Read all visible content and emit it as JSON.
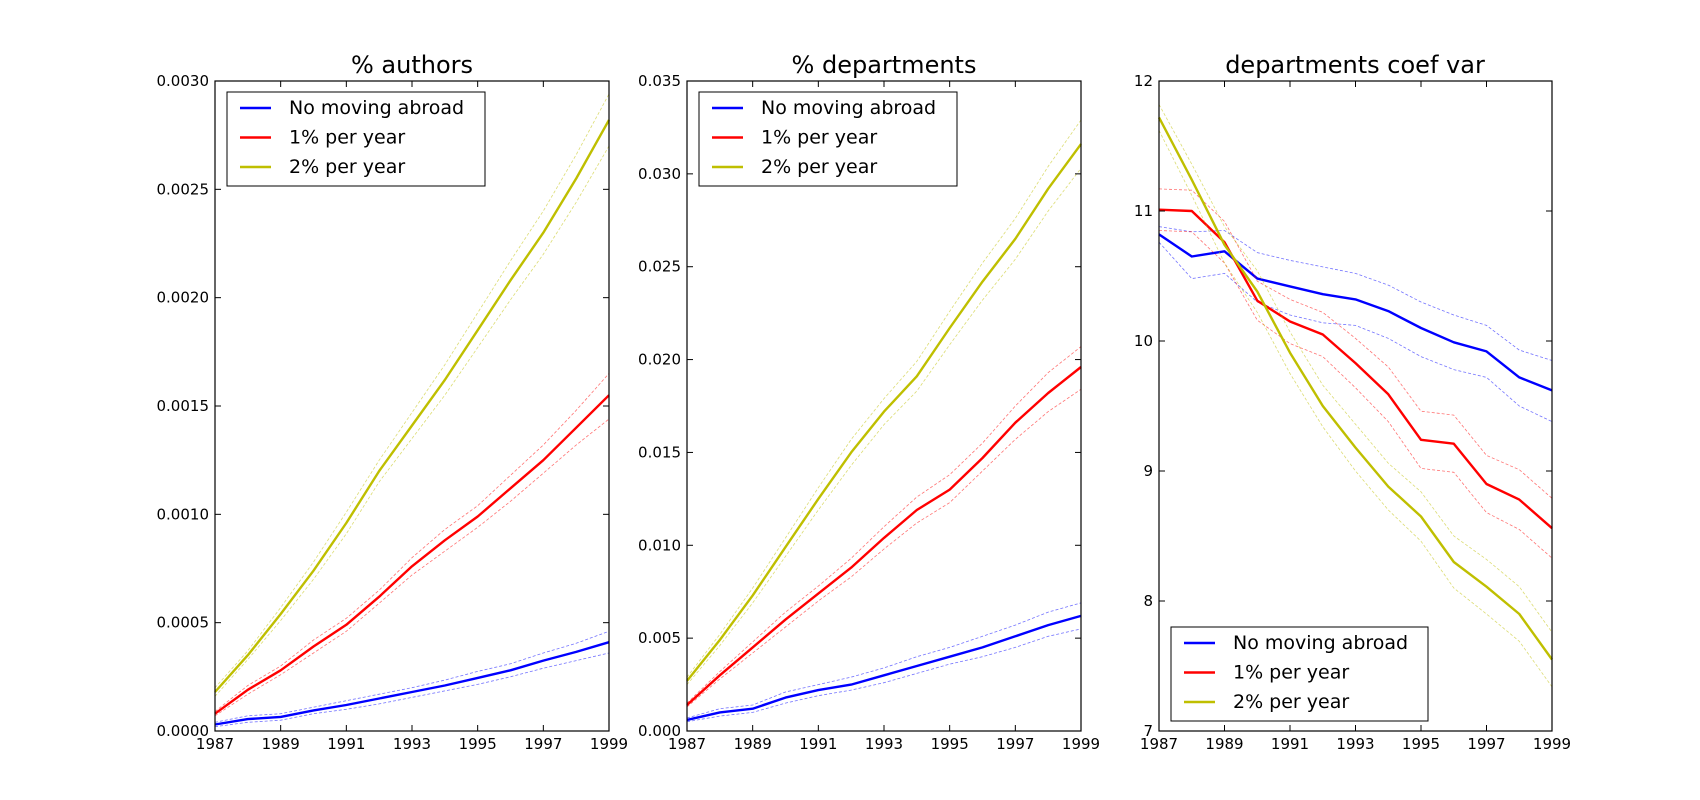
{
  "figure": {
    "background": "#ffffff"
  },
  "chart_data": [
    {
      "type": "line",
      "title": "% authors",
      "xlabel": "",
      "ylabel": "",
      "x": [
        1987,
        1988,
        1989,
        1990,
        1991,
        1992,
        1993,
        1994,
        1995,
        1996,
        1997,
        1998,
        1999
      ],
      "xlim": [
        1987,
        1999
      ],
      "ylim": [
        0,
        0.003
      ],
      "xticks": [
        1987,
        1989,
        1991,
        1993,
        1995,
        1997,
        1999
      ],
      "xtick_labels": [
        "1987",
        "1989",
        "1991",
        "1993",
        "1995",
        "1997",
        "1999"
      ],
      "yticks": [
        0,
        0.0005,
        0.001,
        0.0015,
        0.002,
        0.0025,
        0.003
      ],
      "ytick_labels": [
        "0.0000",
        "0.0005",
        "0.0010",
        "0.0015",
        "0.0020",
        "0.0025",
        "0.0030"
      ],
      "grid": false,
      "legend": "top-left",
      "series": [
        {
          "name": "No moving abroad",
          "color": "#0000ff",
          "values": [
            3e-05,
            5.5e-05,
            6.5e-05,
            9.5e-05,
            0.00012,
            0.00015,
            0.00018,
            0.00021,
            0.000245,
            0.00028,
            0.000325,
            0.000365,
            0.00041
          ],
          "lower": [
            2e-05,
            4e-05,
            5e-05,
            8e-05,
            0.0001,
            0.000125,
            0.000155,
            0.000185,
            0.000215,
            0.00025,
            0.00029,
            0.000325,
            0.00036
          ],
          "upper": [
            4e-05,
            7e-05,
            8e-05,
            0.00011,
            0.00014,
            0.00017,
            0.0002,
            0.000235,
            0.000275,
            0.00031,
            0.00036,
            0.000405,
            0.00046
          ]
        },
        {
          "name": "1% per year",
          "color": "#ff0000",
          "values": [
            8e-05,
            0.00019,
            0.00028,
            0.00039,
            0.00049,
            0.00062,
            0.00076,
            0.00088,
            0.00099,
            0.00112,
            0.00125,
            0.0014,
            0.00155
          ],
          "lower": [
            7e-05,
            0.00017,
            0.00026,
            0.00036,
            0.00046,
            0.00059,
            0.00072,
            0.00083,
            0.00094,
            0.00106,
            0.00119,
            0.00132,
            0.00144
          ],
          "upper": [
            9e-05,
            0.00021,
            0.0003,
            0.00042,
            0.00052,
            0.00065,
            0.0008,
            0.00093,
            0.00104,
            0.00118,
            0.00132,
            0.00148,
            0.00165
          ]
        },
        {
          "name": "2% per year",
          "color": "#bfbf00",
          "values": [
            0.00018,
            0.00035,
            0.00054,
            0.00074,
            0.00096,
            0.0012,
            0.00141,
            0.00162,
            0.00185,
            0.00208,
            0.0023,
            0.00255,
            0.00282
          ],
          "lower": [
            0.00016,
            0.00033,
            0.00051,
            0.0007,
            0.00091,
            0.00115,
            0.00135,
            0.00155,
            0.00177,
            0.00199,
            0.0022,
            0.00244,
            0.0027
          ],
          "upper": [
            0.0002,
            0.00037,
            0.00057,
            0.00078,
            0.00101,
            0.00125,
            0.00147,
            0.00169,
            0.00193,
            0.00217,
            0.0024,
            0.00266,
            0.00294
          ]
        }
      ]
    },
    {
      "type": "line",
      "title": "% departments",
      "xlabel": "",
      "ylabel": "",
      "x": [
        1987,
        1988,
        1989,
        1990,
        1991,
        1992,
        1993,
        1994,
        1995,
        1996,
        1997,
        1998,
        1999
      ],
      "xlim": [
        1987,
        1999
      ],
      "ylim": [
        0,
        0.035
      ],
      "xticks": [
        1987,
        1989,
        1991,
        1993,
        1995,
        1997,
        1999
      ],
      "xtick_labels": [
        "1987",
        "1989",
        "1991",
        "1993",
        "1995",
        "1997",
        "1999"
      ],
      "yticks": [
        0,
        0.005,
        0.01,
        0.015,
        0.02,
        0.025,
        0.03,
        0.035
      ],
      "ytick_labels": [
        "0.000",
        "0.005",
        "0.010",
        "0.015",
        "0.020",
        "0.025",
        "0.030",
        "0.035"
      ],
      "grid": false,
      "legend": "top-left",
      "series": [
        {
          "name": "No moving abroad",
          "color": "#0000ff",
          "values": [
            0.0006,
            0.001,
            0.0012,
            0.0018,
            0.0022,
            0.0025,
            0.003,
            0.0035,
            0.004,
            0.0045,
            0.0051,
            0.0057,
            0.0062
          ],
          "lower": [
            0.0005,
            0.0008,
            0.001,
            0.0015,
            0.0019,
            0.0022,
            0.0026,
            0.0031,
            0.0036,
            0.004,
            0.0045,
            0.0051,
            0.0055
          ],
          "upper": [
            0.0007,
            0.0012,
            0.0014,
            0.0021,
            0.0025,
            0.0029,
            0.0034,
            0.004,
            0.0045,
            0.0051,
            0.0057,
            0.0064,
            0.0069
          ]
        },
        {
          "name": "1% per year",
          "color": "#ff0000",
          "values": [
            0.0014,
            0.003,
            0.0045,
            0.006,
            0.0074,
            0.0088,
            0.0104,
            0.0119,
            0.013,
            0.0147,
            0.0166,
            0.0182,
            0.0196
          ],
          "lower": [
            0.0013,
            0.0028,
            0.0042,
            0.0056,
            0.007,
            0.0083,
            0.0098,
            0.0112,
            0.0123,
            0.014,
            0.0157,
            0.0172,
            0.0184
          ],
          "upper": [
            0.0015,
            0.0032,
            0.0048,
            0.0064,
            0.0078,
            0.0093,
            0.011,
            0.0126,
            0.0138,
            0.0155,
            0.0175,
            0.0193,
            0.0207
          ]
        },
        {
          "name": "2% per year",
          "color": "#bfbf00",
          "values": [
            0.0027,
            0.0049,
            0.0073,
            0.0099,
            0.0125,
            0.015,
            0.0172,
            0.0191,
            0.0217,
            0.0242,
            0.0265,
            0.0292,
            0.0316
          ],
          "lower": [
            0.0025,
            0.0046,
            0.0069,
            0.0094,
            0.0119,
            0.0143,
            0.0165,
            0.0183,
            0.0208,
            0.0232,
            0.0254,
            0.028,
            0.0303
          ],
          "upper": [
            0.0029,
            0.0052,
            0.0077,
            0.0104,
            0.0131,
            0.0157,
            0.0179,
            0.0199,
            0.0226,
            0.0252,
            0.0276,
            0.0304,
            0.0329
          ]
        }
      ]
    },
    {
      "type": "line",
      "title": "departments coef var",
      "xlabel": "",
      "ylabel": "",
      "x": [
        1987,
        1988,
        1989,
        1990,
        1991,
        1992,
        1993,
        1994,
        1995,
        1996,
        1997,
        1998,
        1999
      ],
      "xlim": [
        1987,
        1999
      ],
      "ylim": [
        7,
        12
      ],
      "xticks": [
        1987,
        1989,
        1991,
        1993,
        1995,
        1997,
        1999
      ],
      "xtick_labels": [
        "1987",
        "1989",
        "1991",
        "1993",
        "1995",
        "1997",
        "1999"
      ],
      "yticks": [
        7,
        8,
        9,
        10,
        11,
        12
      ],
      "ytick_labels": [
        "7",
        "8",
        "9",
        "10",
        "11",
        "12"
      ],
      "grid": false,
      "legend": "bottom-left",
      "series": [
        {
          "name": "No moving abroad",
          "color": "#0000ff",
          "values": [
            10.82,
            10.65,
            10.69,
            10.48,
            10.42,
            10.36,
            10.32,
            10.23,
            10.1,
            9.99,
            9.92,
            9.72,
            9.62
          ],
          "lower": [
            10.76,
            10.48,
            10.52,
            10.3,
            10.2,
            10.14,
            10.12,
            10.02,
            9.88,
            9.78,
            9.72,
            9.5,
            9.38
          ],
          "upper": [
            10.88,
            10.84,
            10.85,
            10.68,
            10.62,
            10.57,
            10.52,
            10.43,
            10.3,
            10.2,
            10.12,
            9.93,
            9.85
          ]
        },
        {
          "name": "1% per year",
          "color": "#ff0000",
          "values": [
            11.01,
            11.0,
            10.76,
            10.31,
            10.15,
            10.05,
            9.83,
            9.59,
            9.24,
            9.21,
            8.9,
            8.78,
            8.56
          ],
          "lower": [
            10.85,
            10.84,
            10.6,
            10.16,
            9.98,
            9.88,
            9.64,
            9.38,
            9.02,
            8.99,
            8.68,
            8.55,
            8.33
          ],
          "upper": [
            11.17,
            11.16,
            10.92,
            10.46,
            10.32,
            10.22,
            10.02,
            9.8,
            9.46,
            9.43,
            9.12,
            9.01,
            8.79
          ]
        },
        {
          "name": "2% per year",
          "color": "#bfbf00",
          "values": [
            11.72,
            11.24,
            10.74,
            10.38,
            9.91,
            9.5,
            9.18,
            8.88,
            8.65,
            8.3,
            8.11,
            7.9,
            7.55
          ],
          "lower": [
            11.62,
            11.12,
            10.6,
            10.22,
            9.75,
            9.34,
            9.0,
            8.7,
            8.46,
            8.1,
            7.9,
            7.69,
            7.34
          ],
          "upper": [
            11.82,
            11.36,
            10.88,
            10.54,
            10.07,
            9.66,
            9.36,
            9.06,
            8.84,
            8.5,
            8.32,
            8.11,
            7.76
          ]
        }
      ]
    }
  ]
}
